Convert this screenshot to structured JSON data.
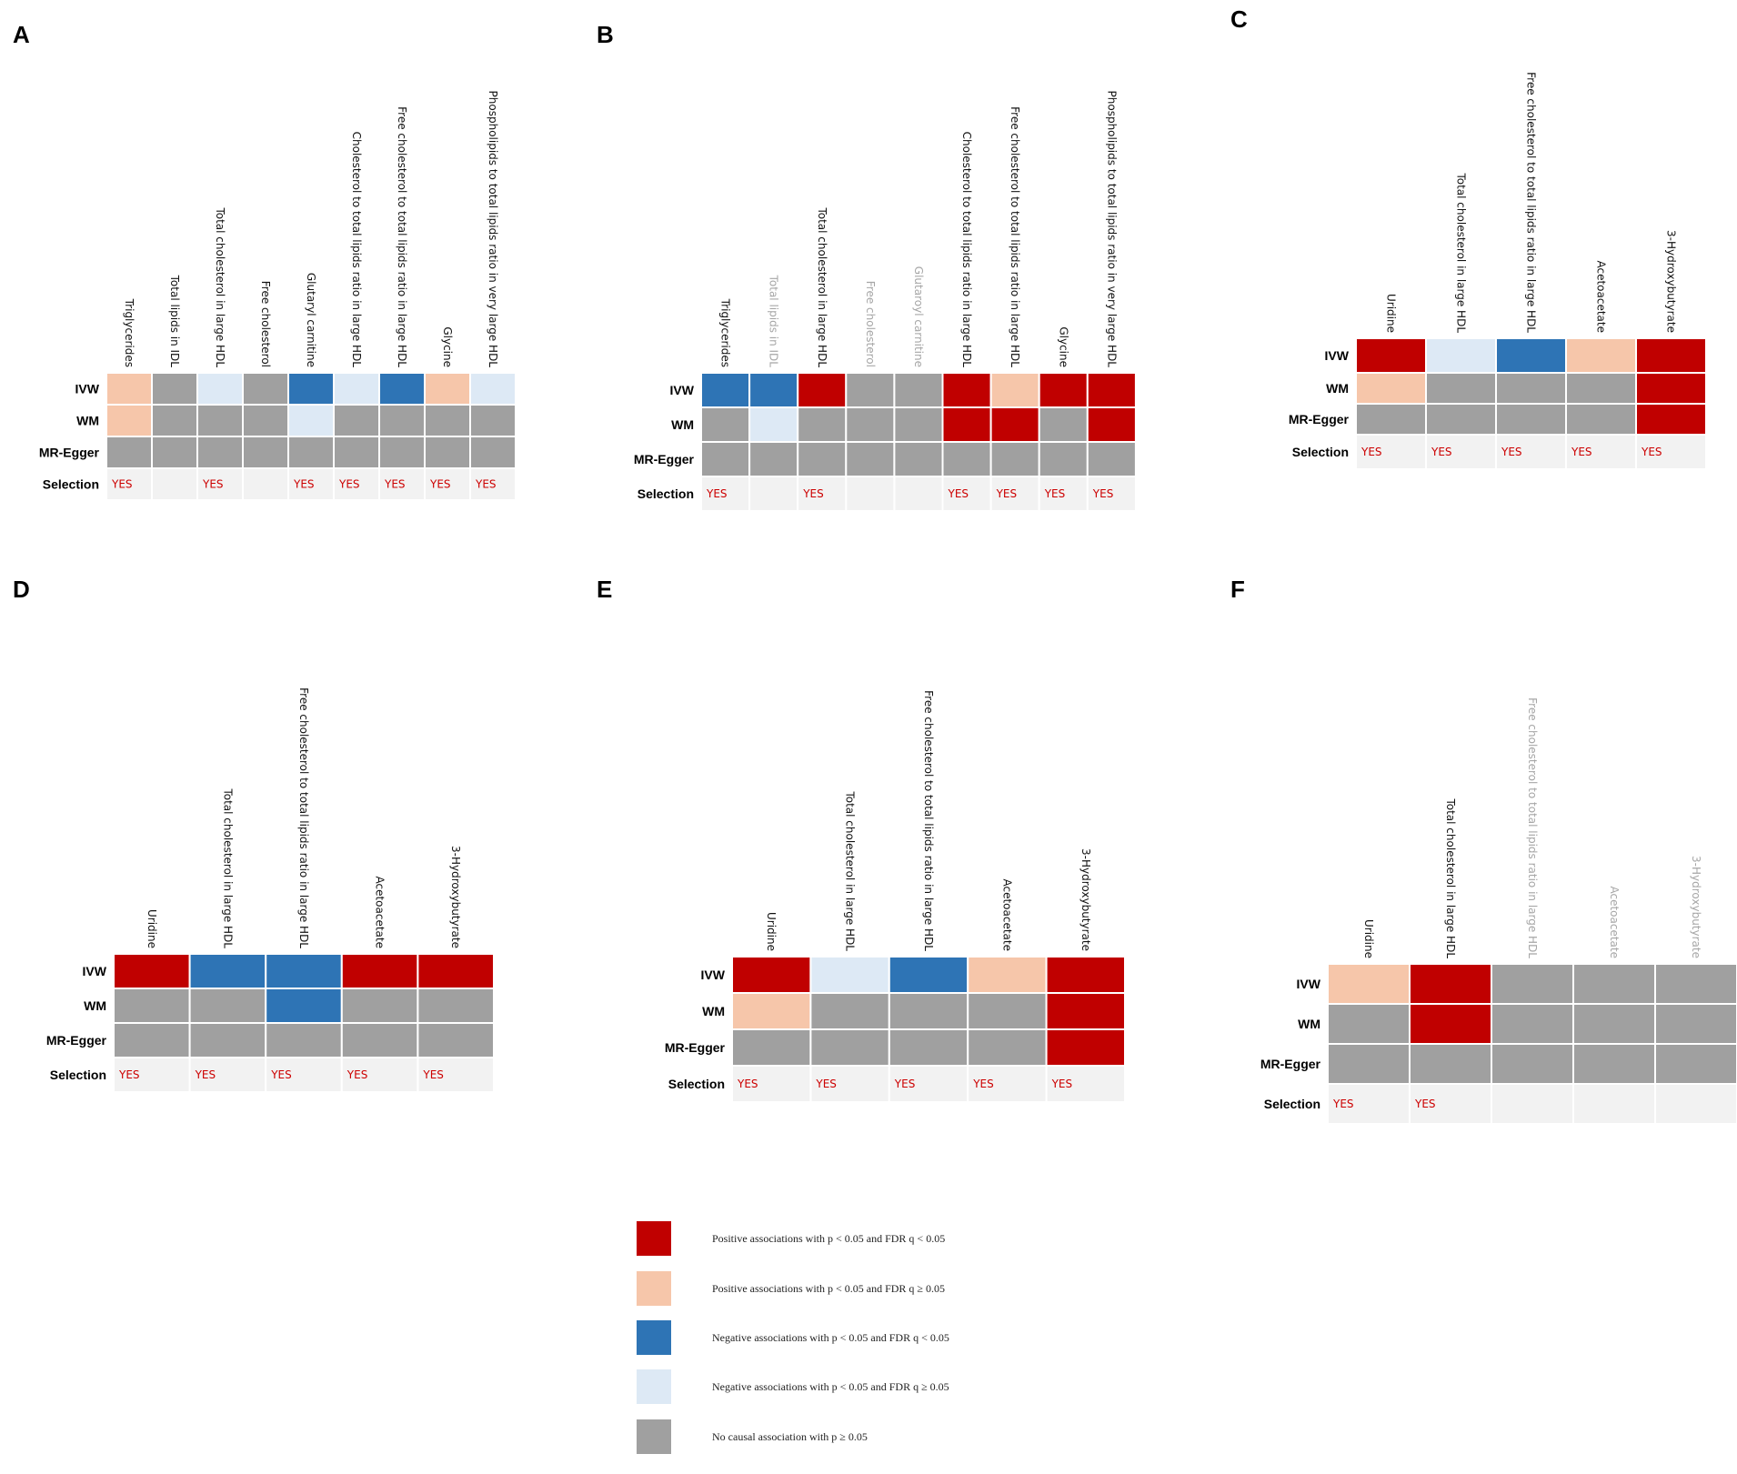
{
  "colors": {
    "pos_sig": "#c00000",
    "pos_nom": "#f6c6aa",
    "neg_sig": "#2e74b5",
    "neg_nom": "#dde9f5",
    "none": "#a0a0a0",
    "selection_bg": "#f2f2f2",
    "label_active": "#111111",
    "label_inactive": "#a6a6a6"
  },
  "legend": [
    {
      "key": "pos_sig",
      "label": "Positive associations with p < 0.05 and FDR q < 0.05"
    },
    {
      "key": "pos_nom",
      "label": "Positive associations with p < 0.05 and FDR q ≥ 0.05"
    },
    {
      "key": "neg_sig",
      "label": "Negative associations with p < 0.05 and FDR q  < 0.05"
    },
    {
      "key": "neg_nom",
      "label": "Negative associations with p < 0.05 and FDR q ≥ 0.05"
    },
    {
      "key": "none",
      "label": "No causal association with p ≥ 0.05"
    }
  ],
  "chart_data": [
    {
      "panel": "A",
      "type": "heatmap",
      "rows": [
        "IVW",
        "WM",
        "MR-Egger",
        "Selection"
      ],
      "columns": [
        "Triglycerides",
        "Total lipids in IDL",
        "Total cholesterol in large HDL",
        "Free cholesterol",
        "Glutaryl carnitine",
        "Cholesterol to total lipids ratio in large HDL",
        "Free cholesterol to total lipids ratio in large HDL",
        "Glycine",
        "Phospholipids to total lipids ratio in very large HDL"
      ],
      "column_active": [
        true,
        true,
        true,
        true,
        true,
        true,
        true,
        true,
        true
      ],
      "IVW": [
        "pos_nom",
        "none",
        "neg_nom",
        "none",
        "neg_sig",
        "neg_nom",
        "neg_sig",
        "pos_nom",
        "neg_nom"
      ],
      "WM": [
        "pos_nom",
        "none",
        "none",
        "none",
        "neg_nom",
        "none",
        "none",
        "none",
        "none"
      ],
      "MR-Egger": [
        "none",
        "none",
        "none",
        "none",
        "none",
        "none",
        "none",
        "none",
        "none"
      ],
      "Selection": [
        "YES",
        "",
        "YES",
        "",
        "YES",
        "YES",
        "YES",
        "YES",
        "YES"
      ]
    },
    {
      "panel": "B",
      "type": "heatmap",
      "rows": [
        "IVW",
        "WM",
        "MR-Egger",
        "Selection"
      ],
      "columns": [
        "Triglycerides",
        "Total lipids in IDL",
        "Total cholesterol in large HDL",
        "Free cholesterol",
        "Glutaroyl carnitine",
        "Cholesterol to total lipids ratio in large HDL",
        "Free cholesterol to total lipids ratio in large HDL",
        "Glycine",
        "Phospholipids to total lipids ratio in very large HDL"
      ],
      "column_active": [
        true,
        false,
        true,
        false,
        false,
        true,
        true,
        true,
        true
      ],
      "IVW": [
        "neg_sig",
        "neg_sig",
        "pos_sig",
        "none",
        "none",
        "pos_sig",
        "pos_nom",
        "pos_sig",
        "pos_sig"
      ],
      "WM": [
        "none",
        "neg_nom",
        "none",
        "none",
        "none",
        "pos_sig",
        "pos_sig",
        "none",
        "pos_sig"
      ],
      "MR-Egger": [
        "none",
        "none",
        "none",
        "none",
        "none",
        "none",
        "none",
        "none",
        "none"
      ],
      "Selection": [
        "YES",
        "",
        "YES",
        "",
        "",
        "YES",
        "YES",
        "YES",
        "YES"
      ]
    },
    {
      "panel": "C",
      "type": "heatmap",
      "rows": [
        "IVW",
        "WM",
        "MR-Egger",
        "Selection"
      ],
      "columns": [
        "Uridine",
        "Total cholesterol in large HDL",
        "Free cholesterol to total lipids ratio in large HDL",
        "Acetoacetate",
        "3-Hydroxybutyrate"
      ],
      "column_active": [
        true,
        true,
        true,
        true,
        true
      ],
      "IVW": [
        "pos_sig",
        "neg_nom",
        "neg_sig",
        "pos_nom",
        "pos_sig"
      ],
      "WM": [
        "pos_nom",
        "none",
        "none",
        "none",
        "pos_sig"
      ],
      "MR-Egger": [
        "none",
        "none",
        "none",
        "none",
        "pos_sig"
      ],
      "Selection": [
        "YES",
        "YES",
        "YES",
        "YES",
        "YES"
      ]
    },
    {
      "panel": "D",
      "type": "heatmap",
      "rows": [
        "IVW",
        "WM",
        "MR-Egger",
        "Selection"
      ],
      "columns": [
        "Uridine",
        "Total cholesterol in large HDL",
        "Free cholesterol to total lipids ratio in large HDL",
        "Acetoacetate",
        "3-Hydroxybutyrate"
      ],
      "column_active": [
        true,
        true,
        true,
        true,
        true
      ],
      "IVW": [
        "pos_sig",
        "neg_sig",
        "neg_sig",
        "pos_sig",
        "pos_sig"
      ],
      "WM": [
        "none",
        "none",
        "neg_sig",
        "none",
        "none"
      ],
      "MR-Egger": [
        "none",
        "none",
        "none",
        "none",
        "none"
      ],
      "Selection": [
        "YES",
        "YES",
        "YES",
        "YES",
        "YES"
      ]
    },
    {
      "panel": "E",
      "type": "heatmap",
      "rows": [
        "IVW",
        "WM",
        "MR-Egger",
        "Selection"
      ],
      "columns": [
        "Uridine",
        "Total cholesterol in large HDL",
        "Free cholesterol to total lipids ratio in large HDL",
        "Acetoacetate",
        "3-Hydroxybutyrate"
      ],
      "column_active": [
        true,
        true,
        true,
        true,
        true
      ],
      "IVW": [
        "pos_sig",
        "neg_nom",
        "neg_sig",
        "pos_nom",
        "pos_sig"
      ],
      "WM": [
        "pos_nom",
        "none",
        "none",
        "none",
        "pos_sig"
      ],
      "MR-Egger": [
        "none",
        "none",
        "none",
        "none",
        "pos_sig"
      ],
      "Selection": [
        "YES",
        "YES",
        "YES",
        "YES",
        "YES"
      ]
    },
    {
      "panel": "F",
      "type": "heatmap",
      "rows": [
        "IVW",
        "WM",
        "MR-Egger",
        "Selection"
      ],
      "columns": [
        "Uridine",
        "Total cholesterol in large HDL",
        "Free cholesterol to total lipids ratio in large HDL",
        "Acetoacetate",
        "3-Hydroxybutyrate"
      ],
      "column_active": [
        true,
        true,
        false,
        false,
        false
      ],
      "IVW": [
        "pos_nom",
        "pos_sig",
        "none",
        "none",
        "none"
      ],
      "WM": [
        "none",
        "pos_sig",
        "none",
        "none",
        "none"
      ],
      "MR-Egger": [
        "none",
        "none",
        "none",
        "none",
        "none"
      ],
      "Selection": [
        "YES",
        "YES",
        "",
        "",
        ""
      ]
    }
  ]
}
